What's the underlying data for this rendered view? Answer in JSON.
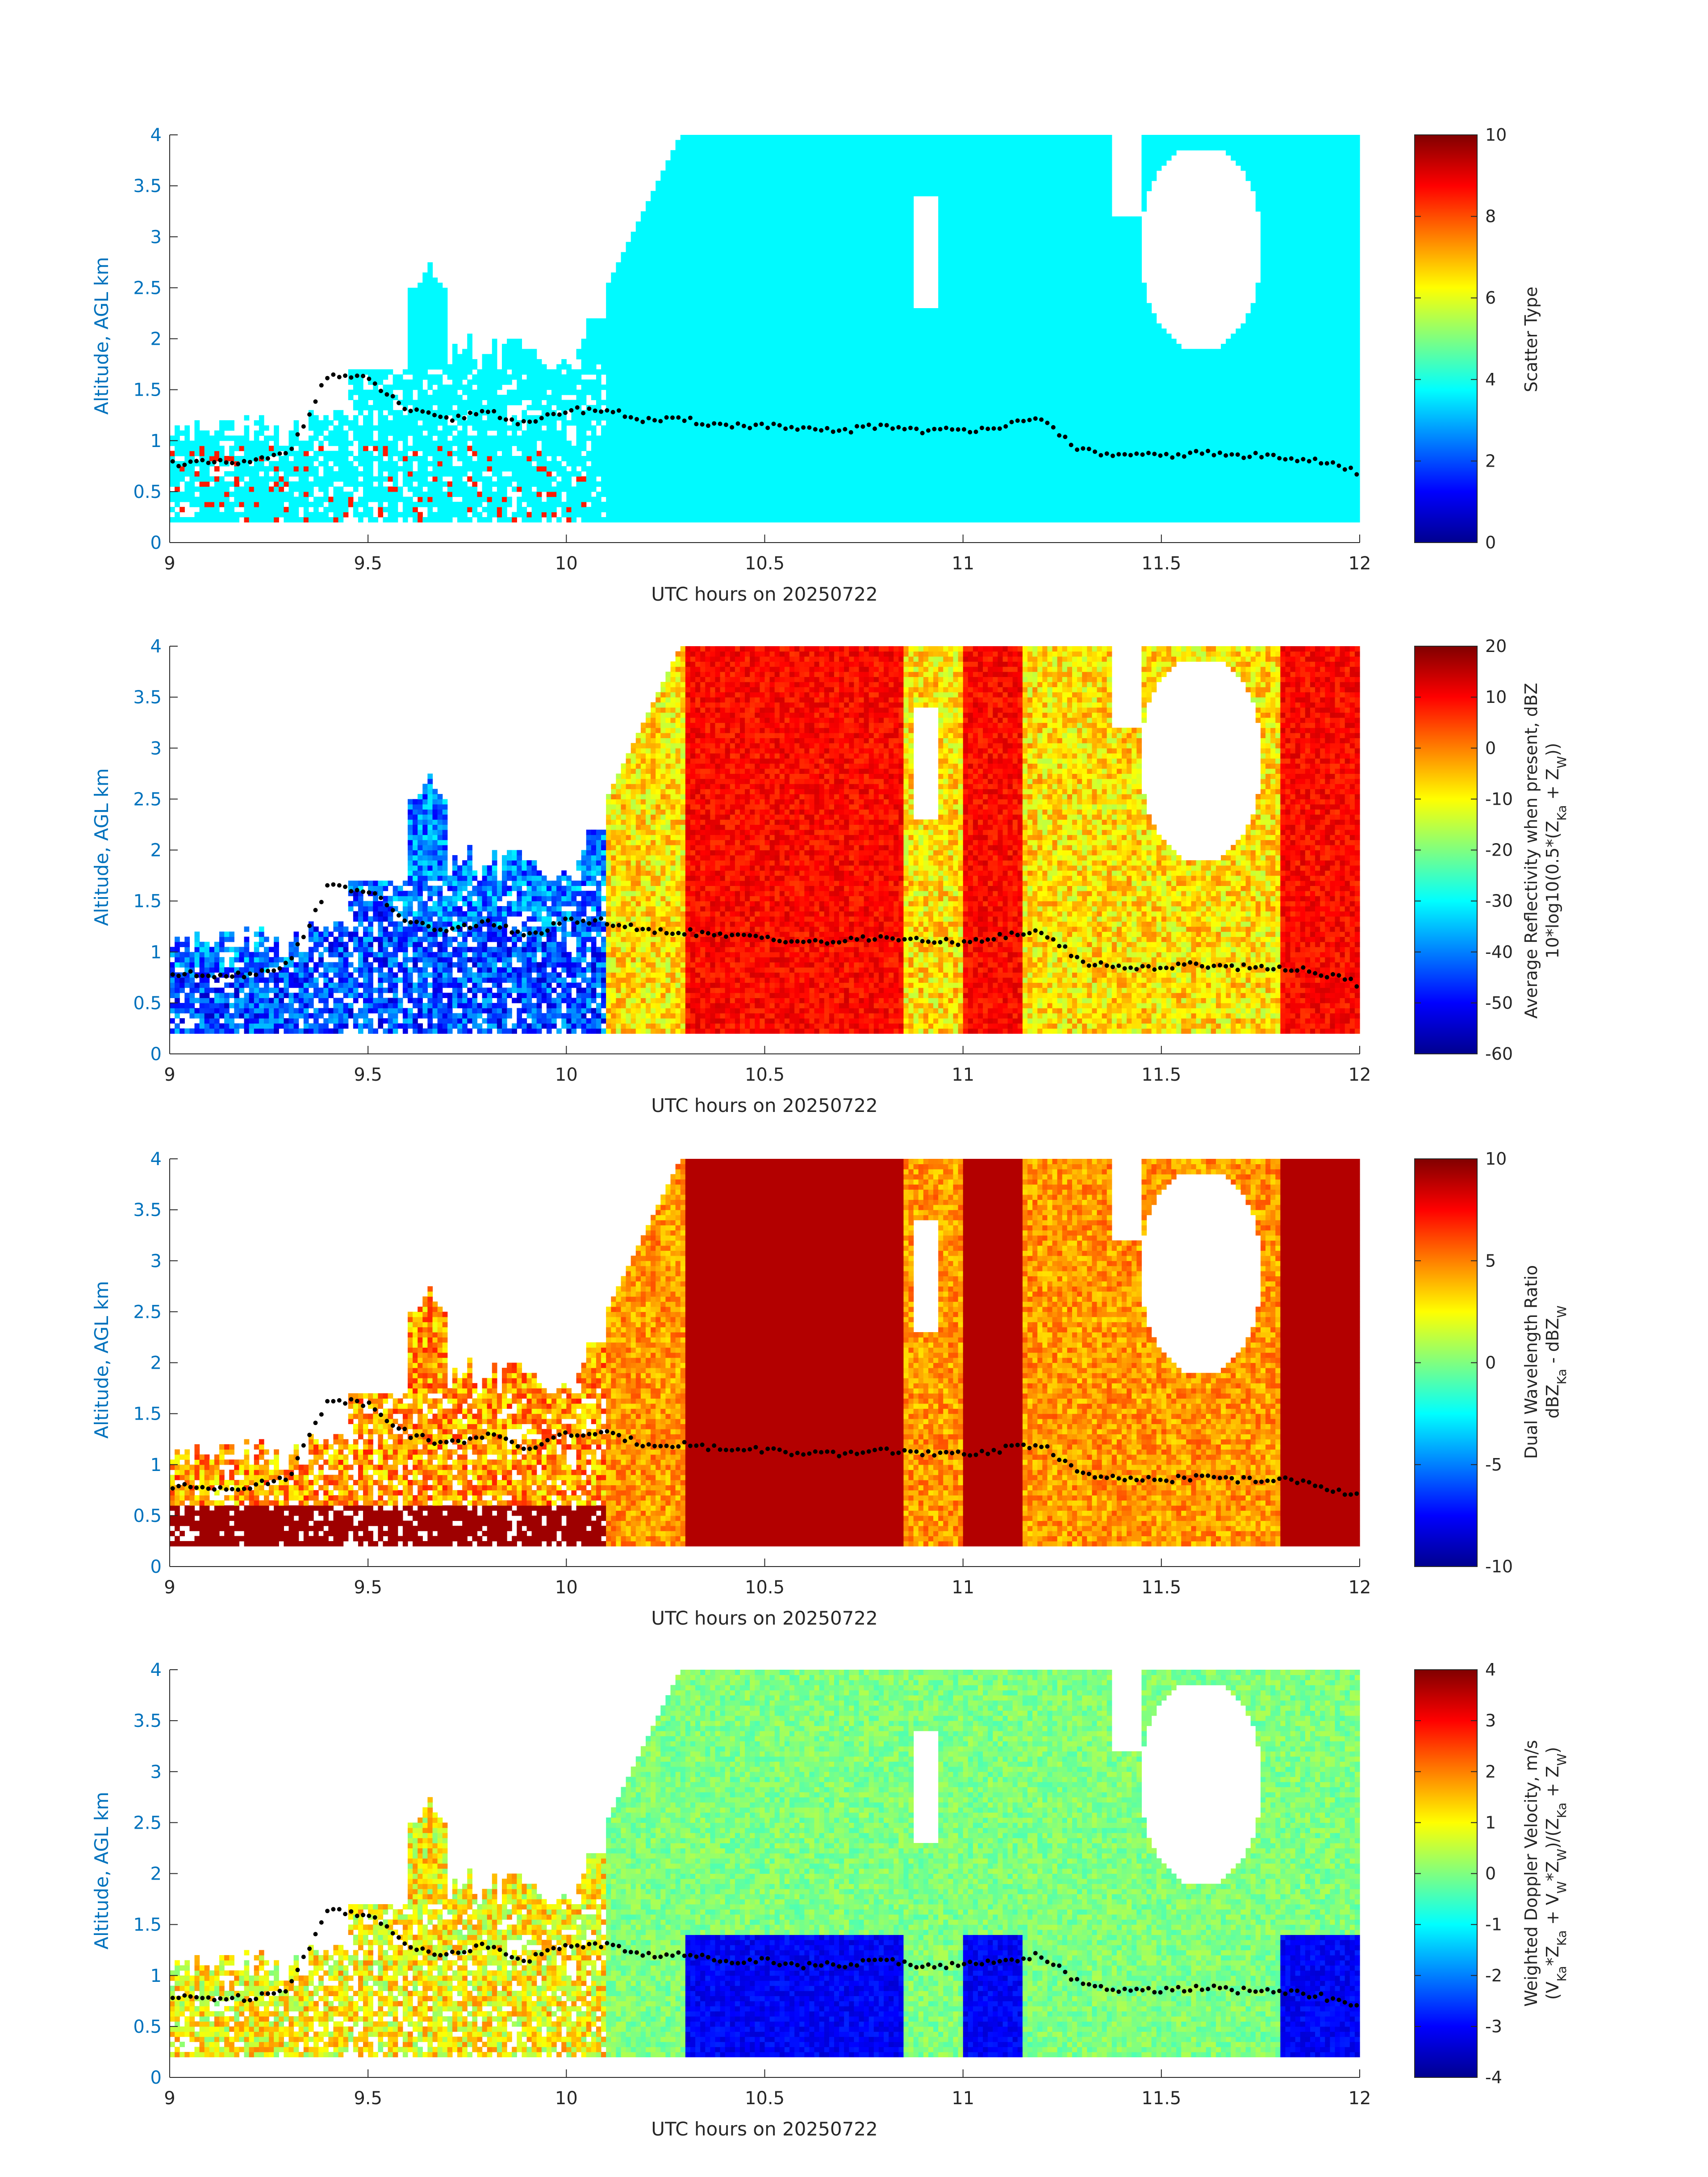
{
  "chart_data": [
    {
      "type": "heatmap",
      "xlabel": "UTC hours on 20250722",
      "ylabel": "Altitude, AGL km",
      "xlim": [
        9,
        12
      ],
      "ylim": [
        0,
        4
      ],
      "xticks": [
        "9",
        "9.5",
        "10",
        "10.5",
        "11",
        "11.5",
        "12"
      ],
      "yticks": [
        "0",
        "0.5",
        "1",
        "1.5",
        "2",
        "2.5",
        "3",
        "3.5",
        "4"
      ],
      "colorbar": {
        "label": "Scatter Type",
        "sublabel": "",
        "range": [
          0,
          10
        ],
        "ticks": [
          "0",
          "2",
          "4",
          "6",
          "8",
          "10"
        ]
      },
      "colormap": "jet",
      "overlay": "cloud base markers (black dots)"
    },
    {
      "type": "heatmap",
      "xlabel": "UTC hours on 20250722",
      "ylabel": "Altitude, AGL km",
      "xlim": [
        9,
        12
      ],
      "ylim": [
        0,
        4
      ],
      "xticks": [
        "9",
        "9.5",
        "10",
        "10.5",
        "11",
        "11.5",
        "12"
      ],
      "yticks": [
        "0",
        "0.5",
        "1",
        "1.5",
        "2",
        "2.5",
        "3",
        "3.5",
        "4"
      ],
      "colorbar": {
        "label": "Average Reflectivity when present, dBZ",
        "sublabel": "10*log10(0.5*(Z_Ka + Z_W))",
        "range": [
          -60,
          20
        ],
        "ticks": [
          "-60",
          "-50",
          "-40",
          "-30",
          "-20",
          "-10",
          "0",
          "10",
          "20"
        ]
      },
      "colormap": "jet",
      "overlay": "cloud base markers (black dots)"
    },
    {
      "type": "heatmap",
      "xlabel": "UTC hours on 20250722",
      "ylabel": "Altitude, AGL km",
      "xlim": [
        9,
        12
      ],
      "ylim": [
        0,
        4
      ],
      "xticks": [
        "9",
        "9.5",
        "10",
        "10.5",
        "11",
        "11.5",
        "12"
      ],
      "yticks": [
        "0",
        "0.5",
        "1",
        "1.5",
        "2",
        "2.5",
        "3",
        "3.5",
        "4"
      ],
      "colorbar": {
        "label": "Dual Wavelength Ratio",
        "sublabel": "dBZ_Ka - dBZ_W",
        "range": [
          -10,
          10
        ],
        "ticks": [
          "-10",
          "-5",
          "0",
          "5",
          "10"
        ]
      },
      "colormap": "jet",
      "overlay": "cloud base markers (black dots)"
    },
    {
      "type": "heatmap",
      "xlabel": "UTC hours on 20250722",
      "ylabel": "Altitude, AGL km",
      "xlim": [
        9,
        12
      ],
      "ylim": [
        0,
        4
      ],
      "xticks": [
        "9",
        "9.5",
        "10",
        "10.5",
        "11",
        "11.5",
        "12"
      ],
      "yticks": [
        "0",
        "0.5",
        "1",
        "1.5",
        "2",
        "2.5",
        "3",
        "3.5",
        "4"
      ],
      "colorbar": {
        "label": "Weighted Doppler Velocity, m/s",
        "sublabel": "(V_Ka*Z_Ka + V_W*Z_W)/(Z_Ka + Z_W)",
        "range": [
          -4,
          4
        ],
        "ticks": [
          "-4",
          "-3",
          "-2",
          "-1",
          "0",
          "1",
          "2",
          "3",
          "4"
        ]
      },
      "colormap": "jet",
      "overlay": "cloud base markers (black dots)"
    }
  ],
  "cloud_base": {
    "x": [
      9.0,
      9.1,
      9.2,
      9.3,
      9.4,
      9.5,
      9.6,
      9.7,
      9.8,
      9.9,
      10.0,
      10.1,
      10.2,
      10.3,
      10.4,
      10.5,
      10.6,
      10.7,
      10.8,
      10.9,
      11.0,
      11.1,
      11.2,
      11.3,
      11.4,
      11.5,
      11.6,
      11.7,
      11.8,
      11.9,
      12.0
    ],
    "y": [
      0.78,
      0.78,
      0.78,
      0.88,
      1.65,
      1.6,
      1.3,
      1.2,
      1.3,
      1.15,
      1.3,
      1.3,
      1.2,
      1.2,
      1.15,
      1.15,
      1.1,
      1.1,
      1.15,
      1.1,
      1.1,
      1.15,
      1.2,
      0.9,
      0.85,
      0.85,
      0.88,
      0.85,
      0.85,
      0.8,
      0.68
    ]
  }
}
